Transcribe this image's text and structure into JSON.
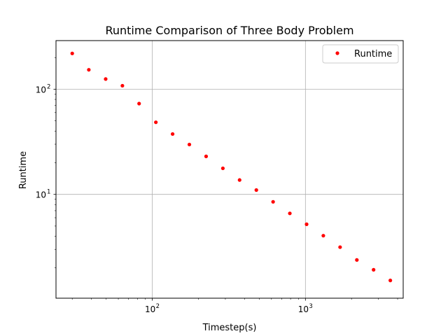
{
  "chart_data": {
    "type": "scatter",
    "title": "Runtime Comparison of Three Body Problem",
    "xlabel": "Timestep(s)",
    "ylabel": "Runtime",
    "xscale": "log",
    "yscale": "log",
    "xlim": [
      23.5,
      4350
    ],
    "ylim": [
      1.03,
      290
    ],
    "grid": true,
    "legend_position": "top-right",
    "x_major_ticks": [
      {
        "value": 100,
        "base": "10",
        "exp": "2"
      },
      {
        "value": 1000,
        "base": "10",
        "exp": "3"
      }
    ],
    "y_major_ticks": [
      {
        "value": 10,
        "base": "10",
        "exp": "1"
      },
      {
        "value": 100,
        "base": "10",
        "exp": "2"
      }
    ],
    "series": [
      {
        "name": "Runtime",
        "color": "#ff0000",
        "marker": "circle",
        "x": [
          30,
          38.5,
          49.6,
          63.8,
          82,
          105.5,
          135.7,
          174.6,
          224.6,
          289,
          371.6,
          478,
          615,
          791,
          1018,
          1309,
          1684,
          2167,
          2787,
          3585
        ],
        "y": [
          219,
          153,
          125,
          108,
          73,
          48.5,
          37.5,
          29.8,
          23,
          17.7,
          13.7,
          11,
          8.5,
          6.6,
          5.2,
          4.05,
          3.15,
          2.38,
          1.92,
          1.52
        ]
      }
    ]
  }
}
